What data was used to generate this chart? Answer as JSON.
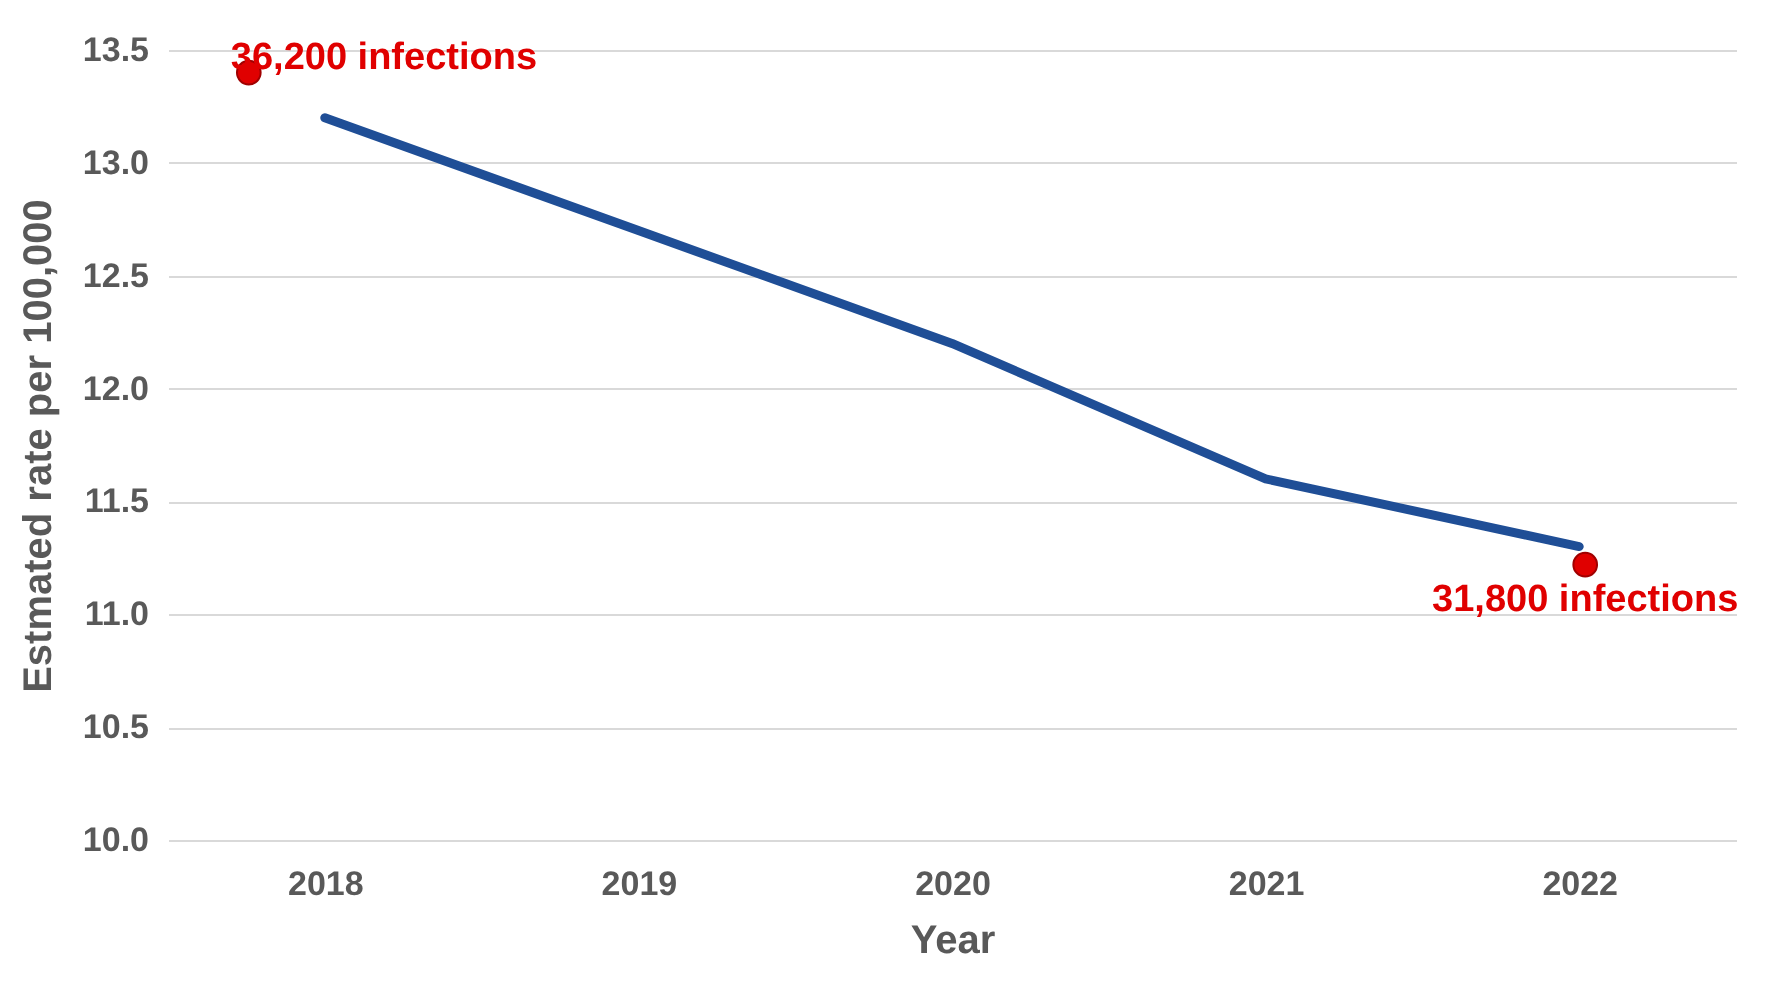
{
  "chart_data": {
    "type": "line",
    "xlabel": "Year",
    "ylabel": "Estmated rate per 100,000",
    "categories": [
      "2018",
      "2019",
      "2020",
      "2021",
      "2022"
    ],
    "series": [
      {
        "color": "#1f4e96",
        "marker": "none",
        "values": [
          13.2,
          12.7,
          12.2,
          11.6,
          11.3
        ]
      },
      {
        "type": "scatter",
        "color": "#e00000",
        "marker": "circle",
        "values": [
          13.4,
          null,
          null,
          null,
          11.22
        ]
      }
    ],
    "ylim": [
      10.0,
      13.5
    ],
    "yticks": [
      {
        "value": 10,
        "label": "10.0"
      },
      {
        "value": 10.5,
        "label": "10.5"
      },
      {
        "value": 11,
        "label": "11.0"
      },
      {
        "value": 11.5,
        "label": "11.5"
      },
      {
        "value": 12,
        "label": "12.0"
      },
      {
        "value": 12.5,
        "label": "12.5"
      },
      {
        "value": 13,
        "label": "13.0"
      },
      {
        "value": 13.5,
        "label": "13.5"
      }
    ],
    "grid": "y",
    "line_style": "solid",
    "annotations": [
      "36,200 infections",
      "31,800 infections"
    ]
  }
}
